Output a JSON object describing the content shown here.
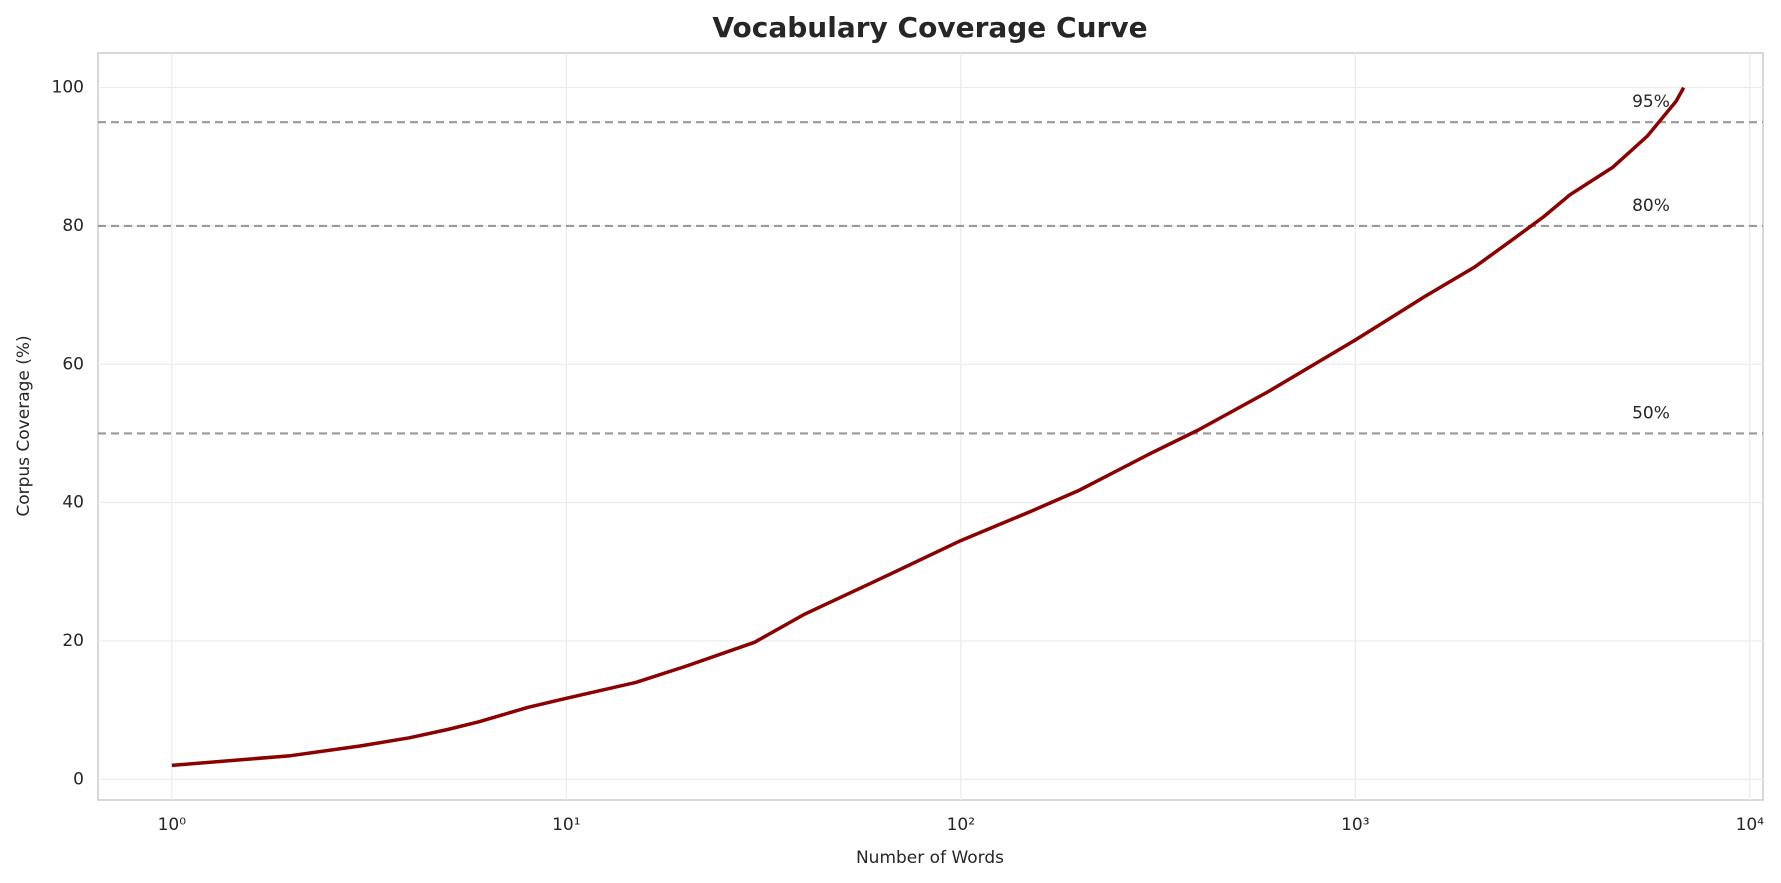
{
  "chart_data": {
    "type": "line",
    "title": "Vocabulary Coverage Curve",
    "x_label": "Number of Words",
    "y_label": "Corpus Coverage (%)",
    "xscale": "log",
    "grid": true,
    "xlim": [
      0.65,
      10800
    ],
    "ylim": [
      -3,
      105
    ],
    "xticks": [
      {
        "value": 1,
        "label": "10⁰"
      },
      {
        "value": 10,
        "label": "10¹"
      },
      {
        "value": 100,
        "label": "10²"
      },
      {
        "value": 1000,
        "label": "10³"
      },
      {
        "value": 10000,
        "label": "10⁴"
      }
    ],
    "yticks": [
      0,
      20,
      40,
      60,
      80,
      100
    ],
    "series": [
      {
        "name": "Coverage",
        "color": "#8b0000",
        "x": [
          1,
          2,
          3,
          4,
          5,
          6,
          8,
          10,
          15,
          20,
          30,
          40,
          60,
          100,
          150,
          200,
          300,
          400,
          600,
          1000,
          1500,
          2000,
          2500,
          3000,
          3500,
          4500,
          5500,
          6500,
          6800
        ],
        "values": [
          2,
          3.4,
          4.8,
          6,
          7.2,
          8.3,
          10.4,
          11.7,
          14,
          16.3,
          19.8,
          23.8,
          28.5,
          34.5,
          38.7,
          41.8,
          47,
          50.5,
          56,
          63.5,
          69.8,
          74,
          78,
          81.3,
          84.5,
          88.5,
          93,
          98,
          100
        ]
      }
    ],
    "hlines": [
      {
        "value": 95,
        "label": "95%"
      },
      {
        "value": 80,
        "label": "80%"
      },
      {
        "value": 50,
        "label": "50%"
      }
    ],
    "hline_color": "#999999"
  }
}
